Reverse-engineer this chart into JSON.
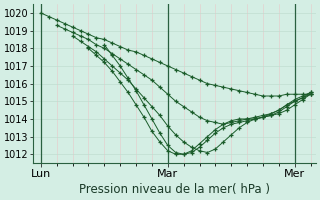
{
  "title": "Pression niveau de la mer( hPa )",
  "bg_color": "#d4eee4",
  "line_color": "#1a5c2a",
  "ylim": [
    1011.5,
    1020.5
  ],
  "yticks": [
    1012,
    1013,
    1014,
    1015,
    1016,
    1017,
    1018,
    1019,
    1020
  ],
  "xtick_labels": [
    "Lun",
    "Mar",
    "Mer"
  ],
  "xtick_positions": [
    0,
    48,
    96
  ],
  "plot_xlim": [
    -3,
    104
  ],
  "lines": [
    {
      "x": [
        0,
        3,
        6,
        9,
        12,
        15,
        18,
        21,
        24,
        27,
        30,
        33,
        36,
        39,
        42,
        45,
        48,
        51,
        54,
        57,
        60,
        63,
        66,
        69,
        72,
        75,
        78,
        81,
        84,
        87,
        90,
        93,
        96,
        99,
        102
      ],
      "y": [
        1020.0,
        1019.8,
        1019.6,
        1019.4,
        1019.2,
        1019.0,
        1018.8,
        1018.6,
        1018.5,
        1018.3,
        1018.1,
        1017.9,
        1017.8,
        1017.6,
        1017.4,
        1017.2,
        1017.0,
        1016.8,
        1016.6,
        1016.4,
        1016.2,
        1016.0,
        1015.9,
        1015.8,
        1015.7,
        1015.6,
        1015.5,
        1015.4,
        1015.3,
        1015.3,
        1015.3,
        1015.4,
        1015.4,
        1015.4,
        1015.4
      ]
    },
    {
      "x": [
        6,
        9,
        12,
        15,
        18,
        21,
        24,
        27,
        30,
        33,
        36,
        39,
        42,
        45,
        48,
        51,
        54,
        57,
        60,
        63,
        66,
        69,
        72,
        75,
        78,
        81,
        84,
        87,
        90,
        93,
        96,
        99,
        102
      ],
      "y": [
        1019.3,
        1019.1,
        1018.9,
        1018.7,
        1018.5,
        1018.2,
        1018.0,
        1017.7,
        1017.4,
        1017.1,
        1016.8,
        1016.5,
        1016.2,
        1015.8,
        1015.4,
        1015.0,
        1014.7,
        1014.4,
        1014.1,
        1013.9,
        1013.8,
        1013.7,
        1013.8,
        1013.9,
        1014.0,
        1014.1,
        1014.2,
        1014.3,
        1014.5,
        1014.8,
        1015.0,
        1015.2,
        1015.4
      ]
    },
    {
      "x": [
        12,
        15,
        18,
        21,
        24,
        27,
        30,
        33,
        36,
        39,
        42,
        45,
        48,
        51,
        54,
        57,
        60,
        63,
        66,
        69,
        72,
        75,
        78,
        81,
        84,
        87,
        90,
        93,
        96,
        99,
        102
      ],
      "y": [
        1018.7,
        1018.4,
        1018.1,
        1017.8,
        1017.4,
        1017.0,
        1016.6,
        1016.2,
        1015.7,
        1015.2,
        1014.7,
        1014.2,
        1013.6,
        1013.1,
        1012.7,
        1012.4,
        1012.2,
        1012.1,
        1012.3,
        1012.7,
        1013.1,
        1013.5,
        1013.8,
        1014.0,
        1014.1,
        1014.2,
        1014.3,
        1014.5,
        1014.8,
        1015.1,
        1015.4
      ]
    },
    {
      "x": [
        18,
        21,
        24,
        27,
        30,
        33,
        36,
        39,
        42,
        45,
        48,
        51,
        54,
        57,
        60,
        63,
        66,
        69,
        72,
        75,
        78,
        81,
        84,
        87,
        90,
        93,
        96,
        99,
        102
      ],
      "y": [
        1018.0,
        1017.6,
        1017.2,
        1016.7,
        1016.1,
        1015.5,
        1014.8,
        1014.1,
        1013.3,
        1012.7,
        1012.2,
        1012.0,
        1012.0,
        1012.1,
        1012.4,
        1012.8,
        1013.2,
        1013.5,
        1013.7,
        1013.8,
        1013.9,
        1014.0,
        1014.1,
        1014.3,
        1014.5,
        1014.8,
        1015.1,
        1015.3,
        1015.5
      ]
    },
    {
      "x": [
        24,
        27,
        30,
        33,
        36,
        39,
        42,
        45,
        48,
        51,
        54,
        57,
        60,
        63,
        66,
        69,
        72,
        75,
        78,
        81,
        84,
        87,
        90,
        93,
        96,
        99,
        102
      ],
      "y": [
        1018.2,
        1017.6,
        1017.0,
        1016.3,
        1015.6,
        1014.8,
        1014.0,
        1013.2,
        1012.5,
        1012.1,
        1012.0,
        1012.2,
        1012.6,
        1013.0,
        1013.4,
        1013.7,
        1013.9,
        1014.0,
        1014.0,
        1014.0,
        1014.1,
        1014.2,
        1014.4,
        1014.7,
        1015.0,
        1015.2,
        1015.5
      ]
    }
  ]
}
